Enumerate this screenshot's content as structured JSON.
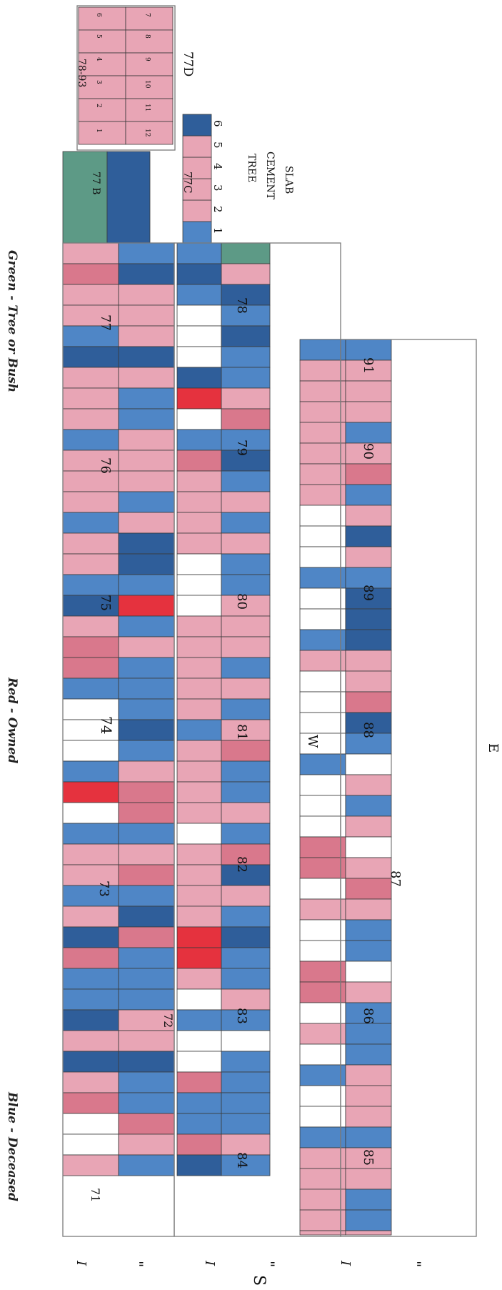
{
  "legend": {
    "green": "Green - Tree or Bush",
    "red": "Red - Owned",
    "blue": "Blue - Deceased"
  },
  "compass": {
    "west": "W",
    "east": "E",
    "south": "S"
  },
  "section_labels": {
    "s77d": "77D",
    "s77c": "77C",
    "s77b": "77 B",
    "s78_93": "78-93",
    "tree_note_1": "TREE",
    "tree_note_2": "CEMENT",
    "tree_note_3": "SLAB"
  },
  "row_marks": {
    "single": "I",
    "double": "\""
  },
  "upper_grid_numbers": [
    "1",
    "2",
    "3",
    "4",
    "5",
    "6",
    "7",
    "8",
    "9",
    "10",
    "11",
    "12"
  ],
  "slab_numbers": [
    "1",
    "2",
    "3",
    "4",
    "5",
    "6"
  ],
  "lot_numbers": {
    "west_block": [
      "71",
      "72",
      "73",
      "74",
      "75",
      "76",
      "77"
    ],
    "middle_block": [
      "78",
      "79",
      "80",
      "81",
      "82",
      "83",
      "84"
    ],
    "east_block": [
      "85",
      "86",
      "87",
      "88",
      "89",
      "90",
      "91"
    ]
  },
  "colors": {
    "owned": "#e8a5b5",
    "owned_dark": "#d9788c",
    "deceased": "#4f86c6",
    "deceased_dark": "#2f5e9a",
    "tree": "#5d9a86",
    "red_bright": "#e5323e",
    "empty": "#ffffff"
  }
}
